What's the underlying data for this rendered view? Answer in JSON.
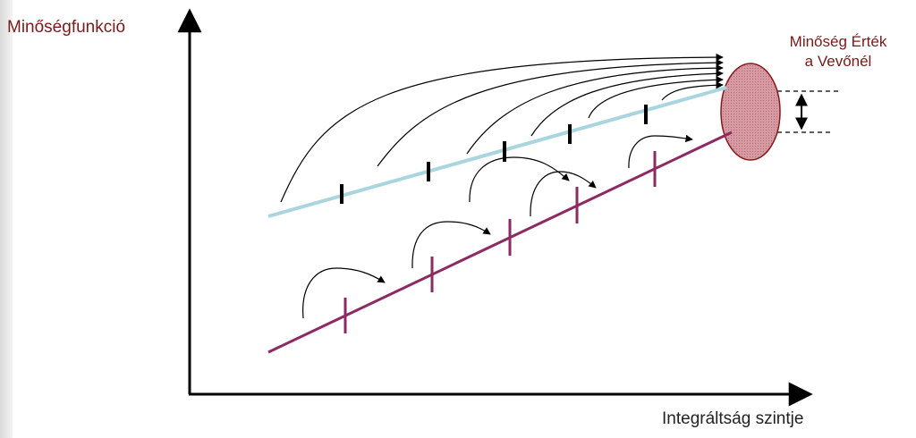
{
  "diagram": {
    "y_axis_label": "Minőségfunkció",
    "x_axis_label": "Integráltság szintje",
    "target_label_line1": "Minőség  Érték",
    "target_label_line2": "a Vevőnél",
    "colors": {
      "upper_line": "#a9d6de",
      "lower_line": "#8b2a63",
      "ellipse_fill": "#d9a0a8",
      "ellipse_stroke": "#8a1a1a",
      "text_maroon": "#7a1a1a"
    }
  }
}
